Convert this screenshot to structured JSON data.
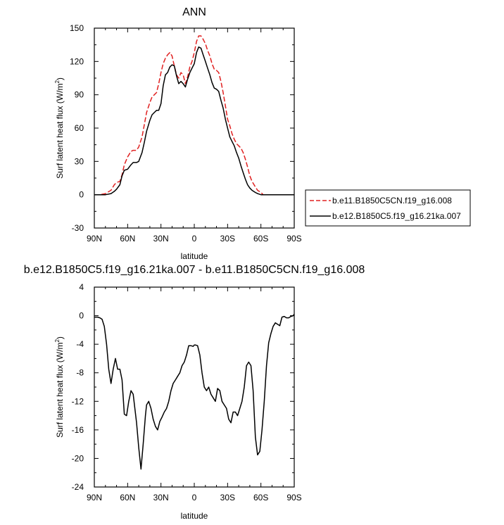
{
  "chart_data": [
    {
      "type": "line",
      "title": "ANN",
      "xlabel": "latitude",
      "ylabel_text": "Surf latent heat flux (W/m",
      "ylabel_sup": "2",
      "ylabel_close": ")",
      "xlim": [
        90,
        -90
      ],
      "ylim": [
        -30,
        150
      ],
      "x_ticks": [
        90,
        60,
        30,
        0,
        -30,
        -60,
        -90
      ],
      "x_tick_labels": [
        "90N",
        "60N",
        "30N",
        "0",
        "30S",
        "60S",
        "90S"
      ],
      "y_ticks": [
        -30,
        0,
        30,
        60,
        90,
        120,
        150
      ],
      "y_tick_labels": [
        "-30",
        "0",
        "30",
        "60",
        "90",
        "120",
        "150"
      ],
      "legend_position": "right",
      "series": [
        {
          "name": "b.e11.B1850C5CN.f19_g16.008",
          "color": "#e02020",
          "dash": "dashed",
          "x": [
            90,
            85,
            80,
            75,
            72,
            70,
            67,
            65,
            63,
            60,
            57,
            55,
            52,
            50,
            47,
            45,
            43,
            40,
            38,
            36,
            34,
            32,
            30,
            28,
            26,
            24,
            22,
            20,
            18,
            16,
            14,
            12,
            10,
            8,
            6,
            4,
            2,
            0,
            -2,
            -4,
            -6,
            -8,
            -10,
            -12,
            -14,
            -16,
            -18,
            -20,
            -22,
            -24,
            -26,
            -28,
            -30,
            -32,
            -34,
            -36,
            -38,
            -40,
            -42,
            -44,
            -46,
            -48,
            -50,
            -52,
            -55,
            -57,
            -60,
            -62,
            -65,
            -68,
            -70,
            -73,
            -76,
            -80,
            -85,
            -90
          ],
          "y": [
            0,
            0,
            1,
            4,
            9,
            11,
            12,
            18,
            27,
            34,
            39,
            40,
            40,
            43,
            52,
            63,
            74,
            83,
            88,
            90,
            92,
            100,
            110,
            118,
            123,
            126,
            128,
            125,
            116,
            108,
            105,
            110,
            108,
            100,
            106,
            115,
            120,
            128,
            138,
            143,
            143,
            140,
            136,
            130,
            125,
            118,
            113,
            112,
            110,
            102,
            92,
            80,
            68,
            62,
            55,
            50,
            46,
            44,
            42,
            38,
            32,
            25,
            17,
            12,
            7,
            4,
            2,
            0,
            0,
            0,
            0,
            0,
            0,
            0,
            0,
            0
          ]
        },
        {
          "name": "b.e12.B1850C5.f19_g16.21ka.007",
          "color": "#000000",
          "dash": "solid",
          "x": [
            90,
            85,
            80,
            75,
            72,
            70,
            67,
            65,
            63,
            60,
            57,
            55,
            52,
            50,
            47,
            45,
            43,
            40,
            38,
            36,
            34,
            32,
            30,
            28,
            26,
            24,
            22,
            20,
            18,
            16,
            14,
            12,
            10,
            8,
            6,
            4,
            2,
            0,
            -2,
            -4,
            -6,
            -8,
            -10,
            -12,
            -14,
            -16,
            -18,
            -20,
            -22,
            -24,
            -26,
            -28,
            -30,
            -32,
            -34,
            -36,
            -38,
            -40,
            -42,
            -44,
            -46,
            -48,
            -50,
            -52,
            -55,
            -57,
            -60,
            -62,
            -65,
            -68,
            -70,
            -73,
            -76,
            -80,
            -85,
            -90
          ],
          "y": [
            0,
            0,
            0,
            1,
            3,
            5,
            9,
            17,
            22,
            23,
            27,
            29,
            29,
            30,
            38,
            47,
            57,
            67,
            72,
            74,
            76,
            76,
            82,
            98,
            108,
            110,
            115,
            117,
            116,
            107,
            100,
            102,
            100,
            97,
            104,
            110,
            114,
            118,
            128,
            133,
            132,
            126,
            120,
            114,
            108,
            101,
            96,
            95,
            93,
            85,
            78,
            68,
            60,
            52,
            48,
            44,
            38,
            33,
            26,
            20,
            14,
            9,
            6,
            4,
            2,
            1,
            0,
            0,
            0,
            0,
            0,
            0,
            0,
            0,
            0,
            0
          ]
        }
      ]
    },
    {
      "type": "line",
      "title": "b.e12.B1850C5.f19_g16.21ka.007 - b.e11.B1850C5CN.f19_g16.008",
      "xlabel": "latitude",
      "ylabel_text": "Surf latent heat flux (W/m",
      "ylabel_sup": "2",
      "ylabel_close": ")",
      "xlim": [
        90,
        -90
      ],
      "ylim": [
        -24,
        4
      ],
      "x_ticks": [
        90,
        60,
        30,
        0,
        -30,
        -60,
        -90
      ],
      "x_tick_labels": [
        "90N",
        "60N",
        "30N",
        "0",
        "30S",
        "60S",
        "90S"
      ],
      "y_ticks": [
        -24,
        -20,
        -16,
        -12,
        -8,
        -4,
        0,
        4
      ],
      "y_tick_labels": [
        "-24",
        "-20",
        "-16",
        "-12",
        "-8",
        "-4",
        "0",
        "4"
      ],
      "series": [
        {
          "color": "#000000",
          "dash": "solid",
          "x": [
            90,
            87,
            85,
            83,
            81,
            79,
            77,
            75,
            73,
            71,
            69,
            67,
            65,
            63,
            61,
            59,
            57,
            55,
            52,
            50,
            48,
            46,
            44,
            43,
            41,
            39,
            37,
            35,
            33,
            31,
            29,
            27,
            25,
            23,
            21,
            19,
            17,
            15,
            13,
            11,
            9,
            7,
            5,
            3,
            1,
            0,
            -1,
            -3,
            -5,
            -7,
            -9,
            -11,
            -13,
            -15,
            -17,
            -19,
            -21,
            -23,
            -25,
            -27,
            -29,
            -31,
            -33,
            -35,
            -37,
            -39,
            -41,
            -43,
            -45,
            -47,
            -49,
            -51,
            -53,
            -55,
            -57,
            -59,
            -61,
            -63,
            -65,
            -67,
            -69,
            -71,
            -73,
            -75,
            -77,
            -79,
            -81,
            -83,
            -85,
            -87,
            -89,
            -90
          ],
          "y": [
            -0.2,
            -0.2,
            -0.3,
            -0.5,
            -1.5,
            -4,
            -7.5,
            -9.5,
            -7.5,
            -6,
            -7.5,
            -7.5,
            -9,
            -13.8,
            -14,
            -12,
            -10.5,
            -11,
            -15,
            -18.5,
            -21.5,
            -18,
            -14,
            -12.5,
            -12,
            -13,
            -14.5,
            -15.5,
            -16,
            -14.8,
            -14.2,
            -13.5,
            -13,
            -12,
            -10.5,
            -9.5,
            -9,
            -8.5,
            -8,
            -7,
            -6.5,
            -5.5,
            -4.2,
            -4.2,
            -4.3,
            -4.1,
            -4.1,
            -4.2,
            -5.5,
            -8,
            -10,
            -10.5,
            -10,
            -11,
            -11.5,
            -12,
            -10.2,
            -10.5,
            -12,
            -12.5,
            -13,
            -14.5,
            -15,
            -13.5,
            -13.5,
            -14,
            -13,
            -12,
            -10,
            -7,
            -6.5,
            -7,
            -10.5,
            -17,
            -19.5,
            -19,
            -16,
            -12,
            -7,
            -3.8,
            -2.5,
            -1.5,
            -1,
            -1.2,
            -1.4,
            -0.2,
            -0.1,
            -0.3,
            -0.3,
            -0.1,
            0,
            0.2
          ]
        }
      ]
    }
  ]
}
